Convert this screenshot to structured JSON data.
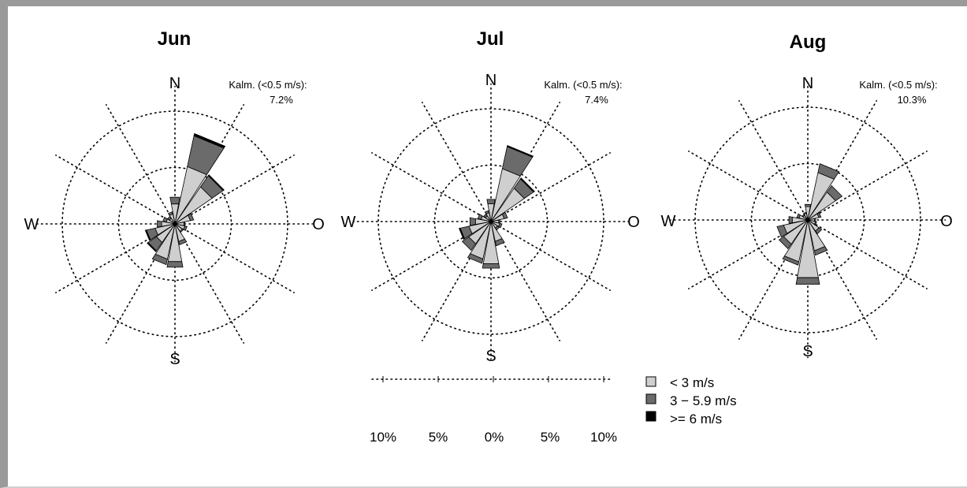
{
  "chart_data": [
    {
      "type": "windrose",
      "title": "Jun",
      "calm_label": "Kalm. (<0.5 m/s):",
      "calm_value": "7.2%",
      "directions": [
        "N",
        "NNE",
        "NE",
        "ENE",
        "E",
        "ESE",
        "SE",
        "SSE",
        "S",
        "SSW",
        "SW",
        "WSW",
        "W",
        "WNW",
        "NW",
        "NNW"
      ],
      "series": [
        {
          "name": "< 3 m/s",
          "values": [
            1.8,
            5.2,
            4.0,
            1.4,
            0.8,
            0.9,
            0.8,
            1.6,
            3.4,
            3.2,
            2.0,
            1.8,
            1.2,
            0.8,
            0.6,
            0.9
          ]
        },
        {
          "name": "3 − 5.9 m/s",
          "values": [
            0.6,
            2.8,
            1.2,
            0.3,
            0.1,
            0.2,
            0.1,
            0.3,
            0.5,
            0.5,
            0.9,
            0.8,
            0.4,
            0.3,
            0.2,
            0.2
          ]
        },
        {
          "name": ">= 6 m/s",
          "values": [
            0.0,
            0.2,
            0.1,
            0.0,
            0.0,
            0.0,
            0.0,
            0.0,
            0.0,
            0.0,
            0.1,
            0.1,
            0.0,
            0.0,
            0.0,
            0.0
          ]
        }
      ]
    },
    {
      "type": "windrose",
      "title": "Jul",
      "calm_label": "Kalm. (<0.5 m/s):",
      "calm_value": "7.4%",
      "directions": [
        "N",
        "NNE",
        "NE",
        "ENE",
        "E",
        "ESE",
        "SE",
        "SSE",
        "S",
        "SSW",
        "SW",
        "WSW",
        "W",
        "WNW",
        "NW",
        "NNW"
      ],
      "series": [
        {
          "name": "< 3 m/s",
          "values": [
            1.6,
            4.8,
            3.6,
            1.2,
            0.7,
            0.8,
            0.7,
            1.8,
            3.8,
            3.4,
            2.4,
            2.0,
            1.4,
            0.9,
            0.6,
            0.8
          ]
        },
        {
          "name": "3 − 5.9 m/s",
          "values": [
            0.4,
            2.0,
            1.0,
            0.3,
            0.1,
            0.2,
            0.2,
            0.4,
            0.4,
            0.4,
            0.7,
            0.8,
            0.5,
            0.3,
            0.2,
            0.2
          ]
        },
        {
          "name": ">= 6 m/s",
          "values": [
            0.0,
            0.1,
            0.1,
            0.0,
            0.0,
            0.0,
            0.0,
            0.0,
            0.0,
            0.0,
            0.0,
            0.1,
            0.0,
            0.0,
            0.0,
            0.0
          ]
        }
      ]
    },
    {
      "type": "windrose",
      "title": "Aug",
      "calm_label": "Kalm. (<0.5 m/s):",
      "calm_value": "10.3%",
      "directions": [
        "N",
        "NNE",
        "NE",
        "ENE",
        "E",
        "ESE",
        "SE",
        "SSE",
        "S",
        "SSW",
        "SW",
        "WSW",
        "W",
        "WNW",
        "NW",
        "NNW"
      ],
      "series": [
        {
          "name": "< 3 m/s",
          "values": [
            1.2,
            4.3,
            3.0,
            1.0,
            0.6,
            0.7,
            1.2,
            2.8,
            5.2,
            3.8,
            2.6,
            2.2,
            1.4,
            0.8,
            0.5,
            0.6
          ]
        },
        {
          "name": "3 − 5.9 m/s",
          "values": [
            0.2,
            0.8,
            0.7,
            0.2,
            0.1,
            0.1,
            0.3,
            0.4,
            0.6,
            0.3,
            0.5,
            0.6,
            0.3,
            0.2,
            0.1,
            0.1
          ]
        },
        {
          "name": ">= 6 m/s",
          "values": [
            0.0,
            0.0,
            0.0,
            0.0,
            0.0,
            0.0,
            0.0,
            0.0,
            0.0,
            0.0,
            0.0,
            0.0,
            0.0,
            0.0,
            0.0,
            0.0
          ]
        }
      ]
    }
  ],
  "compass": {
    "n": "N",
    "s": "S",
    "w": "W",
    "e": "O"
  },
  "rings": [
    5,
    10
  ],
  "scale": {
    "labels": [
      "10%",
      "5%",
      "0%",
      "5%",
      "10%"
    ],
    "values": [
      -10,
      -5,
      0,
      5,
      10
    ]
  },
  "legend": [
    {
      "label": "< 3 m/s",
      "color": "#cfcfcf"
    },
    {
      "label": "3 − 5.9 m/s",
      "color": "#6b6b6b"
    },
    {
      "label": ">= 6 m/s",
      "color": "#000000"
    }
  ]
}
